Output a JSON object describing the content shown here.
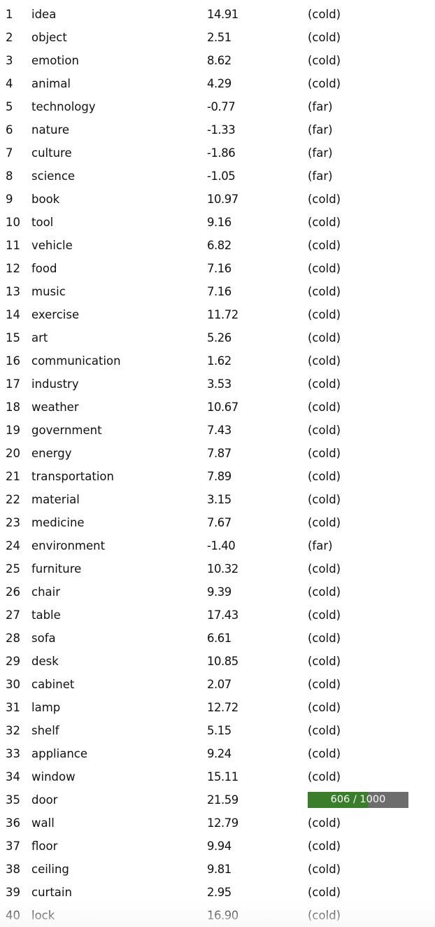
{
  "guesses": {
    "rows": [
      {
        "num": "1",
        "word": "idea",
        "similarity": "14.91",
        "proximity": "(cold)"
      },
      {
        "num": "2",
        "word": "object",
        "similarity": "2.51",
        "proximity": "(cold)"
      },
      {
        "num": "3",
        "word": "emotion",
        "similarity": "8.62",
        "proximity": "(cold)"
      },
      {
        "num": "4",
        "word": "animal",
        "similarity": "4.29",
        "proximity": "(cold)"
      },
      {
        "num": "5",
        "word": "technology",
        "similarity": "-0.77",
        "proximity": "(far)"
      },
      {
        "num": "6",
        "word": "nature",
        "similarity": "-1.33",
        "proximity": "(far)"
      },
      {
        "num": "7",
        "word": "culture",
        "similarity": "-1.86",
        "proximity": "(far)"
      },
      {
        "num": "8",
        "word": "science",
        "similarity": "-1.05",
        "proximity": "(far)"
      },
      {
        "num": "9",
        "word": "book",
        "similarity": "10.97",
        "proximity": "(cold)"
      },
      {
        "num": "10",
        "word": "tool",
        "similarity": "9.16",
        "proximity": "(cold)"
      },
      {
        "num": "11",
        "word": "vehicle",
        "similarity": "6.82",
        "proximity": "(cold)"
      },
      {
        "num": "12",
        "word": "food",
        "similarity": "7.16",
        "proximity": "(cold)"
      },
      {
        "num": "13",
        "word": "music",
        "similarity": "7.16",
        "proximity": "(cold)"
      },
      {
        "num": "14",
        "word": "exercise",
        "similarity": "11.72",
        "proximity": "(cold)"
      },
      {
        "num": "15",
        "word": "art",
        "similarity": "5.26",
        "proximity": "(cold)"
      },
      {
        "num": "16",
        "word": "communication",
        "similarity": "1.62",
        "proximity": "(cold)"
      },
      {
        "num": "17",
        "word": "industry",
        "similarity": "3.53",
        "proximity": "(cold)"
      },
      {
        "num": "18",
        "word": "weather",
        "similarity": "10.67",
        "proximity": "(cold)"
      },
      {
        "num": "19",
        "word": "government",
        "similarity": "7.43",
        "proximity": "(cold)"
      },
      {
        "num": "20",
        "word": "energy",
        "similarity": "7.87",
        "proximity": "(cold)"
      },
      {
        "num": "21",
        "word": "transportation",
        "similarity": "7.89",
        "proximity": "(cold)"
      },
      {
        "num": "22",
        "word": "material",
        "similarity": "3.15",
        "proximity": "(cold)"
      },
      {
        "num": "23",
        "word": "medicine",
        "similarity": "7.67",
        "proximity": "(cold)"
      },
      {
        "num": "24",
        "word": "environment",
        "similarity": "-1.40",
        "proximity": "(far)"
      },
      {
        "num": "25",
        "word": "furniture",
        "similarity": "10.32",
        "proximity": "(cold)"
      },
      {
        "num": "26",
        "word": "chair",
        "similarity": "9.39",
        "proximity": "(cold)"
      },
      {
        "num": "27",
        "word": "table",
        "similarity": "17.43",
        "proximity": "(cold)"
      },
      {
        "num": "28",
        "word": "sofa",
        "similarity": "6.61",
        "proximity": "(cold)"
      },
      {
        "num": "29",
        "word": "desk",
        "similarity": "10.85",
        "proximity": "(cold)"
      },
      {
        "num": "30",
        "word": "cabinet",
        "similarity": "2.07",
        "proximity": "(cold)"
      },
      {
        "num": "31",
        "word": "lamp",
        "similarity": "12.72",
        "proximity": "(cold)"
      },
      {
        "num": "32",
        "word": "shelf",
        "similarity": "5.15",
        "proximity": "(cold)"
      },
      {
        "num": "33",
        "word": "appliance",
        "similarity": "9.24",
        "proximity": "(cold)"
      },
      {
        "num": "34",
        "word": "window",
        "similarity": "15.11",
        "proximity": "(cold)"
      },
      {
        "num": "35",
        "word": "door",
        "similarity": "21.59",
        "proximity": "",
        "rank_bar": {
          "label": "606 / 1000",
          "fraction": 0.606
        }
      },
      {
        "num": "36",
        "word": "wall",
        "similarity": "12.79",
        "proximity": "(cold)"
      },
      {
        "num": "37",
        "word": "floor",
        "similarity": "9.94",
        "proximity": "(cold)"
      },
      {
        "num": "38",
        "word": "ceiling",
        "similarity": "9.81",
        "proximity": "(cold)"
      },
      {
        "num": "39",
        "word": "curtain",
        "similarity": "2.95",
        "proximity": "(cold)"
      },
      {
        "num": "40",
        "word": "lock",
        "similarity": "16.90",
        "proximity": "(cold)"
      }
    ]
  },
  "colors": {
    "text": "#111111",
    "rank_bar_fill": "#3a7d2a",
    "rank_bar_track": "#6d6d6d",
    "rank_bar_text": "#ffffff"
  }
}
